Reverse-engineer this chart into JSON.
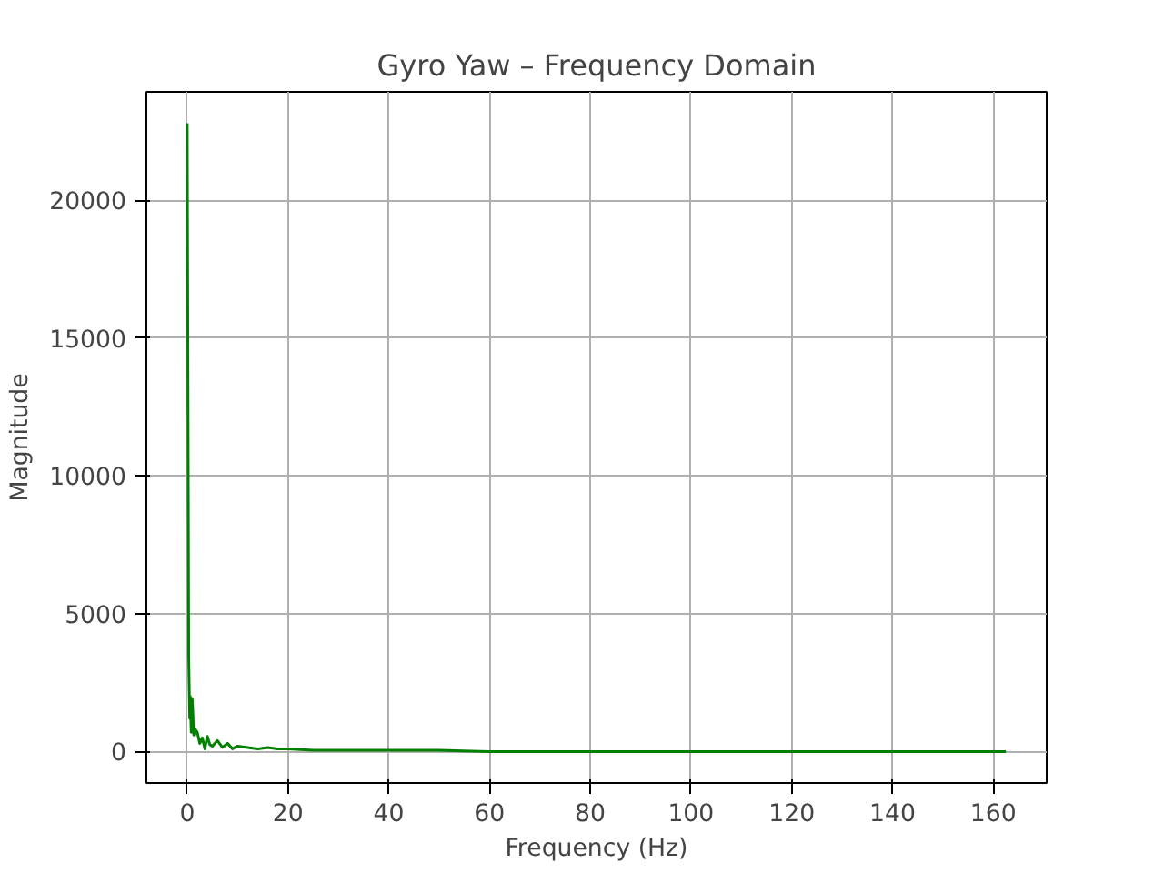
{
  "chart_data": {
    "type": "line",
    "title": "Gyro Yaw – Frequency Domain",
    "xlabel": "Frequency (Hz)",
    "ylabel": "Magnitude",
    "series": [
      {
        "color": "#008000",
        "x": [
          0,
          0.3,
          0.5,
          0.6,
          0.8,
          1,
          1.3,
          1.6,
          2,
          2.5,
          3,
          3.5,
          4,
          4.5,
          5,
          6,
          7,
          8,
          9,
          10,
          12,
          14,
          16,
          18,
          20,
          25,
          30,
          35,
          40,
          50,
          60,
          80,
          100,
          120,
          140,
          162.5
        ],
        "values": [
          22800,
          3400,
          1200,
          2000,
          700,
          1900,
          600,
          800,
          700,
          300,
          500,
          100,
          550,
          250,
          200,
          400,
          150,
          300,
          100,
          200,
          150,
          100,
          150,
          100,
          100,
          50,
          50,
          50,
          50,
          50,
          0,
          0,
          0,
          0,
          0,
          0
        ]
      }
    ],
    "xlim": [
      -8.1,
      170.6
    ],
    "ylim": [
      -1140,
      23940
    ],
    "xticks": [
      0,
      20,
      40,
      60,
      80,
      100,
      120,
      140,
      160
    ],
    "yticks": [
      0,
      5000,
      10000,
      15000,
      20000
    ],
    "grid": true,
    "marker": "none",
    "line_style": "solid"
  }
}
